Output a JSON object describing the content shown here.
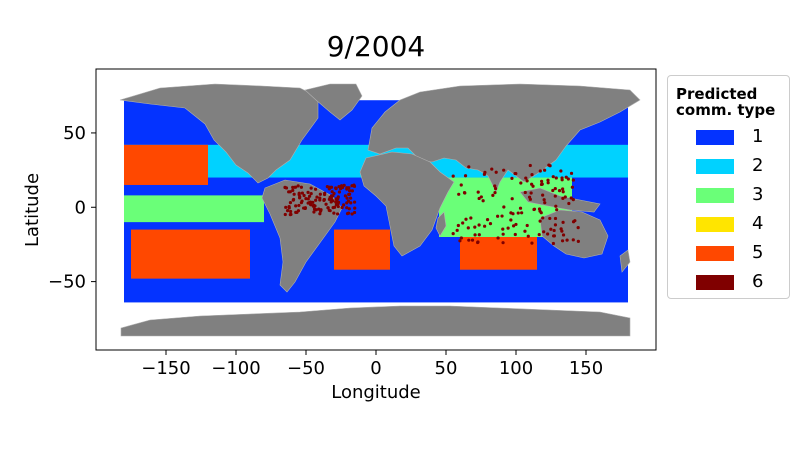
{
  "title": "9/2004",
  "xlabel": "Longitude",
  "ylabel": "Latitude",
  "x_ticks": [
    "−150",
    "−100",
    "−50",
    "0",
    "50",
    "100",
    "150"
  ],
  "y_ticks": [
    "50",
    "0",
    "−50"
  ],
  "legend": {
    "title": "Predicted\ncomm. type",
    "items": [
      {
        "label": "1",
        "color": "#0433ff"
      },
      {
        "label": "2",
        "color": "#00d2ff"
      },
      {
        "label": "3",
        "color": "#6aff78"
      },
      {
        "label": "4",
        "color": "#ffe500"
      },
      {
        "label": "5",
        "color": "#ff4800"
      },
      {
        "label": "6",
        "color": "#800000"
      }
    ]
  },
  "chart_data": {
    "type": "scatter",
    "xlim": [
      -200,
      200
    ],
    "ylim": [
      -96,
      93
    ],
    "x_ticks": [
      -150,
      -100,
      -50,
      0,
      50,
      100,
      150
    ],
    "y_ticks": [
      50,
      0,
      -50
    ],
    "land_color": "#808080",
    "zones": [
      {
        "type": 1,
        "lon": [
          -180,
          180
        ],
        "lat": [
          -64,
          72
        ]
      },
      {
        "type": 2,
        "lon": [
          -180,
          180
        ],
        "lat": [
          20,
          42
        ]
      },
      {
        "type": 5,
        "lon": [
          -180,
          -120
        ],
        "lat": [
          15,
          42
        ]
      },
      {
        "type": 3,
        "lon": [
          -180,
          -80
        ],
        "lat": [
          -10,
          8
        ]
      },
      {
        "type": 5,
        "lon": [
          -175,
          -90
        ],
        "lat": [
          -48,
          -15
        ]
      },
      {
        "type": 5,
        "lon": [
          -30,
          10
        ],
        "lat": [
          -42,
          -15
        ]
      },
      {
        "type": 3,
        "lon": [
          45,
          140
        ],
        "lat": [
          -20,
          20
        ]
      },
      {
        "type": 5,
        "lon": [
          60,
          115
        ],
        "lat": [
          -42,
          -20
        ]
      },
      {
        "type": 6,
        "lon": [
          -65,
          -15
        ],
        "lat": [
          -5,
          15
        ]
      },
      {
        "type": 6,
        "lon": [
          55,
          145
        ],
        "lat": [
          -25,
          30
        ]
      }
    ]
  }
}
